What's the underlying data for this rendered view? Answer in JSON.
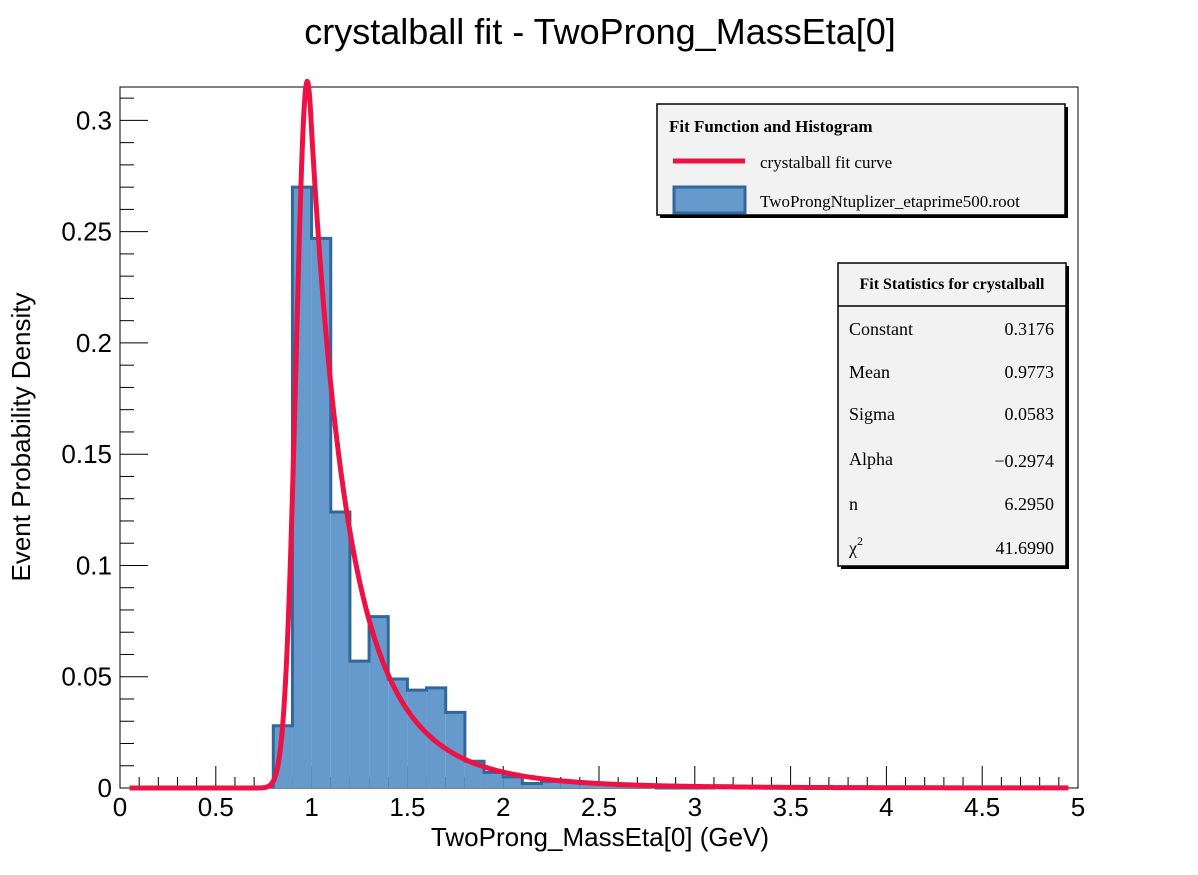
{
  "chart_data": {
    "type": "bar",
    "title": "crystalball fit - TwoProng_MassEta[0]",
    "xlabel": "TwoProng_MassEta[0] (GeV)",
    "ylabel": "Event Probability Density",
    "xlim": [
      0,
      5
    ],
    "ylim": [
      0,
      0.315
    ],
    "x_ticks": [
      "0",
      "0.5",
      "1",
      "1.5",
      "2",
      "2.5",
      "3",
      "3.5",
      "4",
      "4.5",
      "5"
    ],
    "y_ticks": [
      "0",
      "0.05",
      "0.1",
      "0.15",
      "0.2",
      "0.25",
      "0.3"
    ],
    "histogram": {
      "name": "TwoProngNtuplizer_etaprime500.root",
      "bin_width": 0.1,
      "bin_low_edges": [
        0.8,
        0.9,
        1.0,
        1.1,
        1.2,
        1.3,
        1.4,
        1.5,
        1.6,
        1.7,
        1.8,
        1.9,
        2.0,
        2.1,
        2.2,
        2.3,
        2.4,
        2.5,
        2.6,
        2.7,
        2.8,
        2.9,
        3.0,
        3.1,
        3.2
      ],
      "values": [
        0.028,
        0.27,
        0.247,
        0.124,
        0.057,
        0.077,
        0.049,
        0.044,
        0.045,
        0.034,
        0.012,
        0.007,
        0.005,
        0.002,
        0.003,
        0.003,
        0.002,
        0.002,
        0.001,
        0.001,
        0.0,
        0.0,
        0.0,
        0.001,
        0.0
      ],
      "fill_color": "#6699cc",
      "line_color": "#336699"
    },
    "fit_curve": {
      "name": "crystalball fit curve",
      "color": "#ee1144",
      "x_range": [
        0.05,
        4.95
      ],
      "constant": 0.3176,
      "mean": 0.9773,
      "sigma": 0.0583,
      "alpha": -0.2974,
      "n": 6.295
    },
    "legend": {
      "header": "Fit Function and Histogram",
      "entries": [
        "crystalball fit curve",
        "TwoProngNtuplizer_etaprime500.root"
      ],
      "placement": "top-right"
    },
    "stats": {
      "header": "Fit Statistics for crystalball",
      "rows": [
        {
          "label": "Constant",
          "value": "0.3176"
        },
        {
          "label": "Mean",
          "value": "0.9773"
        },
        {
          "label": "Sigma",
          "value": "0.0583"
        },
        {
          "label": "Alpha",
          "value": "−0.2974"
        },
        {
          "label": "n",
          "value": "6.2950"
        },
        {
          "label": "χ",
          "sup": "2",
          "value": "41.6990"
        }
      ]
    }
  }
}
